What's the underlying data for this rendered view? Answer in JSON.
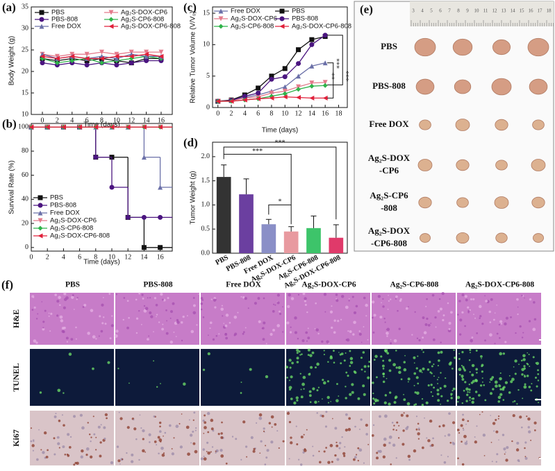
{
  "chart_data": [
    {
      "type": "line",
      "panel_label": "(a)",
      "xlabel": "Time (days)",
      "ylabel": "Body Weight (g)",
      "x": [
        0,
        2,
        4,
        6,
        8,
        10,
        12,
        14,
        16
      ],
      "xlim": [
        -1.5,
        17.5
      ],
      "xticks": [
        0,
        2,
        4,
        6,
        8,
        10,
        12,
        14,
        16
      ],
      "ylim": [
        10,
        35
      ],
      "yticks": [
        10,
        15,
        20,
        25,
        30,
        35
      ],
      "series": [
        {
          "name": "PBS",
          "color": "#111111",
          "marker": "square",
          "values": [
            23,
            22.5,
            23,
            22.5,
            23,
            22.5,
            22,
            23,
            23
          ]
        },
        {
          "name": "Ag₂S-DOX-CP6",
          "color": "#e47b8c",
          "marker": "tri-down",
          "values": [
            24,
            23.5,
            24,
            24,
            24.5,
            24,
            24.5,
            24.5,
            24.5
          ]
        },
        {
          "name": "PBS-808",
          "color": "#4b1580",
          "marker": "circle",
          "values": [
            22,
            21.5,
            22,
            21.5,
            22,
            21.5,
            22,
            22.5,
            22.5
          ]
        },
        {
          "name": "Ag₂S-CP6-808",
          "color": "#2fb34a",
          "marker": "diamond",
          "values": [
            23,
            22,
            22.5,
            23,
            22,
            22.5,
            23,
            23.5,
            23
          ]
        },
        {
          "name": "Free DOX",
          "color": "#6b70a8",
          "marker": "tri-up",
          "values": [
            24,
            23,
            23.5,
            23,
            23.5,
            23,
            24,
            23.5,
            23.5
          ]
        },
        {
          "name": "Ag₂S-DOX-CP6-808",
          "color": "#e0203a",
          "marker": "tri-left",
          "values": [
            23.5,
            23,
            23.5,
            23,
            23,
            23.5,
            23.5,
            24,
            23.5
          ]
        }
      ]
    },
    {
      "type": "line",
      "drawstyle": "steps-post",
      "panel_label": "(b)",
      "xlabel": "Time (days)",
      "ylabel": "Survival Rate (%)",
      "x": [
        0,
        2,
        4,
        6,
        8,
        10,
        12,
        14,
        16
      ],
      "xlim": [
        0,
        17.5
      ],
      "xticks": [
        0,
        2,
        4,
        6,
        8,
        10,
        12,
        14,
        16
      ],
      "ylim": [
        -3,
        103
      ],
      "yticks": [
        0,
        20,
        40,
        60,
        80,
        100
      ],
      "series": [
        {
          "name": "PBS",
          "color": "#111111",
          "marker": "square",
          "values": [
            100,
            100,
            100,
            100,
            75,
            75,
            25,
            0,
            0
          ]
        },
        {
          "name": "PBS-808",
          "color": "#4b1580",
          "marker": "circle",
          "values": [
            100,
            100,
            100,
            100,
            75,
            50,
            25,
            25,
            25
          ]
        },
        {
          "name": "Free DOX",
          "color": "#6b70a8",
          "marker": "tri-up",
          "values": [
            100,
            100,
            100,
            100,
            100,
            100,
            100,
            75,
            50
          ]
        },
        {
          "name": "Ag₂S-DOX-CP6",
          "color": "#e47b8c",
          "marker": "tri-down",
          "values": [
            100,
            100,
            100,
            100,
            100,
            100,
            100,
            100,
            100
          ]
        },
        {
          "name": "Ag₂S-CP6-808",
          "color": "#2fb34a",
          "marker": "diamond",
          "values": [
            100,
            100,
            100,
            100,
            100,
            100,
            100,
            100,
            100
          ]
        },
        {
          "name": "Ag₂S-DOX-CP6-808",
          "color": "#e0203a",
          "marker": "tri-left",
          "values": [
            100,
            100,
            100,
            100,
            100,
            100,
            100,
            100,
            100
          ]
        }
      ]
    },
    {
      "type": "line",
      "panel_label": "(c)",
      "xlabel": "Time (days)",
      "ylabel": "Relative Tumor Volume (V/V₀)",
      "x": [
        0,
        2,
        4,
        6,
        8,
        10,
        12,
        14,
        16
      ],
      "xlim": [
        -0.8,
        19.3
      ],
      "xticks": [
        0,
        2,
        4,
        6,
        8,
        10,
        12,
        14,
        16,
        18
      ],
      "ylim": [
        0,
        16
      ],
      "yticks": [
        0,
        5,
        10,
        15
      ],
      "annotations": [
        "***",
        "***",
        "**"
      ],
      "series": [
        {
          "name": "Free DOX",
          "color": "#6b70a8",
          "marker": "tri-up",
          "values": [
            1,
            1.1,
            1.6,
            2,
            2.6,
            3.3,
            5,
            6.6,
            7.1
          ]
        },
        {
          "name": "PBS",
          "color": "#111111",
          "marker": "square",
          "values": [
            1,
            1.2,
            2,
            3.1,
            5,
            6.2,
            9.2,
            10.8,
            11.3
          ]
        },
        {
          "name": "Ag₂S-DOX-CP6",
          "color": "#e47b8c",
          "marker": "tri-down",
          "values": [
            1,
            1.1,
            1.5,
            1.7,
            2.3,
            2.6,
            3.3,
            3.9,
            4
          ]
        },
        {
          "name": "PBS-808",
          "color": "#4b1580",
          "marker": "circle",
          "values": [
            1,
            1.1,
            1.8,
            2.3,
            4.5,
            4.9,
            7,
            10,
            11.5
          ]
        },
        {
          "name": "Ag₂S-CP6-808",
          "color": "#2fb34a",
          "marker": "diamond",
          "values": [
            1,
            1,
            1.2,
            1.4,
            1.8,
            2.2,
            2.9,
            3.4,
            3.5
          ]
        },
        {
          "name": "Ag₂S-DOX-CP6-808",
          "color": "#e0203a",
          "marker": "tri-left",
          "values": [
            1,
            1,
            1.2,
            1.4,
            1.5,
            1.7,
            1.6,
            1.5,
            1.5
          ]
        }
      ]
    },
    {
      "type": "bar",
      "panel_label": "(d)",
      "ylabel": "Tumor Weight (g)",
      "categories": [
        "PBS",
        "PBS-808",
        "Free DOX",
        "Ag₂S-DOX-CP6",
        "Ag₂S-CP6-808",
        "Ag₂S-DOX-CP6-808"
      ],
      "values": [
        1.58,
        1.22,
        0.6,
        0.45,
        0.52,
        0.32
      ],
      "errors": [
        0.25,
        0.32,
        0.1,
        0.1,
        0.25,
        0.27
      ],
      "colors": [
        "#333333",
        "#6b3fa0",
        "#8a8fc7",
        "#e89aa0",
        "#3dc46a",
        "#e03a6a"
      ],
      "ylim": [
        0,
        2.3
      ],
      "yticks": [
        {
          "value": 0,
          "label": "0.0"
        },
        0.5,
        {
          "value": 1,
          "label": "1.0"
        },
        1.5,
        {
          "value": 2,
          "label": "2.0"
        }
      ],
      "annotations": [
        "***",
        "***",
        "*"
      ]
    }
  ],
  "panel_e": {
    "label": "(e)",
    "ruler": [
      3,
      4,
      5,
      6,
      7,
      8,
      9,
      10,
      11,
      12,
      13,
      14,
      15,
      16,
      17,
      18
    ],
    "rows": [
      [
        "PBS"
      ],
      [
        "PBS-808"
      ],
      [
        "Free DOX"
      ],
      [
        "Ag₂S-DOX",
        "-CP6"
      ],
      [
        "Ag₂S-CP6",
        "-808"
      ],
      [
        "Ag₂S-DOX",
        "-CP6-808"
      ]
    ]
  },
  "panel_f": {
    "label": "(f)",
    "columns": [
      "PBS",
      "PBS-808",
      "Free DOX",
      "Ag₂S-DOX-CP6",
      "Ag₂S-CP6-808",
      "Ag₂S-DOX-CP6-808"
    ],
    "rows": [
      "H&E",
      "TUNEL",
      "Ki67"
    ]
  }
}
